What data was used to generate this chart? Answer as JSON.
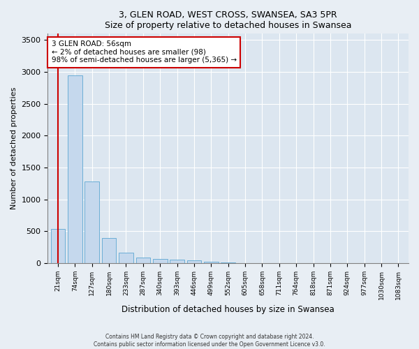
{
  "title1": "3, GLEN ROAD, WEST CROSS, SWANSEA, SA3 5PR",
  "title2": "Size of property relative to detached houses in Swansea",
  "xlabel": "Distribution of detached houses by size in Swansea",
  "ylabel": "Number of detached properties",
  "categories": [
    "21sqm",
    "74sqm",
    "127sqm",
    "180sqm",
    "233sqm",
    "287sqm",
    "340sqm",
    "393sqm",
    "446sqm",
    "499sqm",
    "552sqm",
    "605sqm",
    "658sqm",
    "711sqm",
    "764sqm",
    "818sqm",
    "871sqm",
    "924sqm",
    "977sqm",
    "1030sqm",
    "1083sqm"
  ],
  "values": [
    530,
    2950,
    1280,
    395,
    160,
    90,
    60,
    55,
    45,
    20,
    5,
    3,
    2,
    1,
    1,
    0,
    0,
    0,
    0,
    0,
    0
  ],
  "bar_color": "#c5d8ed",
  "bar_edge_color": "#6baed6",
  "vline_x": 0,
  "vline_color": "#cc0000",
  "annotation_text": "3 GLEN ROAD: 56sqm\n← 2% of detached houses are smaller (98)\n98% of semi-detached houses are larger (5,365) →",
  "annotation_box_color": "white",
  "annotation_box_edge": "#cc0000",
  "ylim": [
    0,
    3600
  ],
  "yticks": [
    0,
    500,
    1000,
    1500,
    2000,
    2500,
    3000,
    3500
  ],
  "footer1": "Contains HM Land Registry data © Crown copyright and database right 2024.",
  "footer2": "Contains public sector information licensed under the Open Government Licence v3.0.",
  "bg_color": "#e8eef4",
  "plot_bg_color": "#dce6f0"
}
